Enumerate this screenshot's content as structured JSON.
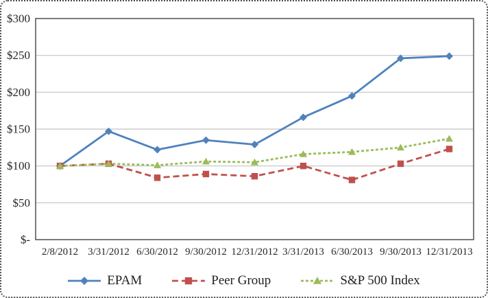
{
  "figure": {
    "background": "#ffffff",
    "border_color": "#4d4d4d",
    "text_color": "#262626",
    "gridline_color": "#c3c3c3",
    "plot_border_color": "#5a5a5a"
  },
  "chart_data": {
    "type": "line",
    "title": "",
    "xlabel": "",
    "ylabel": "",
    "ylim": [
      0,
      300
    ],
    "grid": true,
    "legend_position": "bottom",
    "categories": [
      "2/8/2012",
      "3/31/2012",
      "6/30/2012",
      "9/30/2012",
      "12/31/2012",
      "3/31/2013",
      "6/30/2013",
      "9/30/2013",
      "12/31/2013"
    ],
    "y_ticks": [
      {
        "label": "$300",
        "value": 300
      },
      {
        "label": "$250",
        "value": 250
      },
      {
        "label": "$200",
        "value": 200
      },
      {
        "label": "$150",
        "value": 150
      },
      {
        "label": "$100",
        "value": 100
      },
      {
        "label": "$50",
        "value": 50
      },
      {
        "label": "$-",
        "value": 0
      }
    ],
    "series": [
      {
        "name": "EPAM",
        "color": "#4F81BD",
        "marker": "diamond",
        "line_style": "solid",
        "values": [
          100,
          147,
          122,
          135,
          129,
          166,
          195,
          246,
          249
        ]
      },
      {
        "name": "Peer Group",
        "color": "#C0504D",
        "marker": "square",
        "line_style": "dashed",
        "values": [
          100,
          103,
          84,
          89,
          86,
          100,
          81,
          103,
          123
        ]
      },
      {
        "name": "S&P 500 Index",
        "color": "#9BBB59",
        "marker": "triangle",
        "line_style": "short-dash",
        "values": [
          100,
          103,
          101,
          106,
          105,
          116,
          119,
          125,
          137
        ]
      }
    ]
  }
}
